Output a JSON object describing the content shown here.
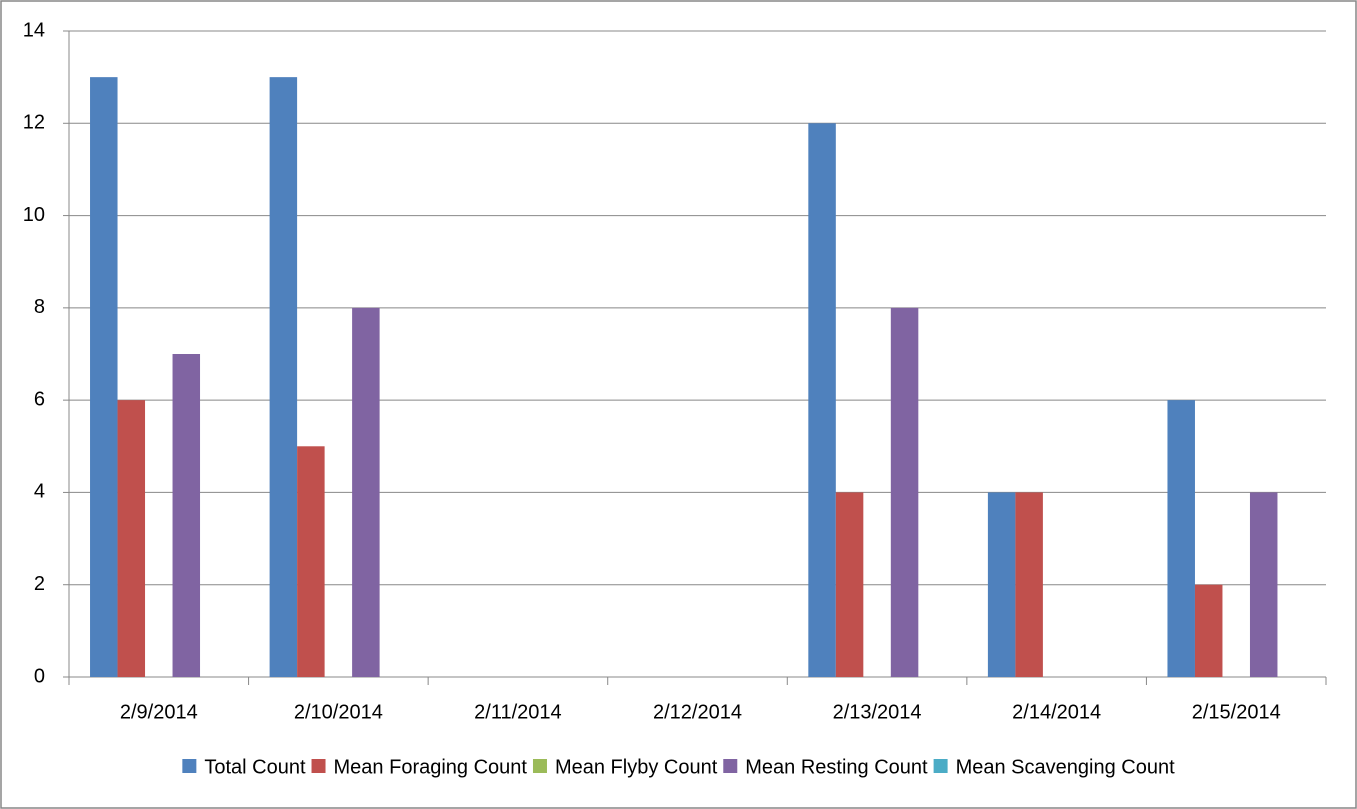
{
  "chart_data": {
    "type": "bar",
    "categories": [
      "2/9/2014",
      "2/10/2014",
      "2/11/2014",
      "2/12/2014",
      "2/13/2014",
      "2/14/2014",
      "2/15/2014"
    ],
    "series": [
      {
        "name": "Total Count",
        "color": "#4f81bd",
        "values": [
          13,
          13,
          0,
          0,
          12,
          4,
          6
        ]
      },
      {
        "name": "Mean Foraging Count",
        "color": "#c0504d",
        "values": [
          6,
          5,
          0,
          0,
          4,
          4,
          2
        ]
      },
      {
        "name": "Mean Flyby Count",
        "color": "#9bbb59",
        "values": [
          0,
          0,
          0,
          0,
          0,
          0,
          0
        ]
      },
      {
        "name": "Mean Resting Count",
        "color": "#8064a2",
        "values": [
          7,
          8,
          0,
          0,
          8,
          0,
          4
        ]
      },
      {
        "name": "Mean Scavenging Count",
        "color": "#4bacc6",
        "values": [
          0,
          0,
          0,
          0,
          0,
          0,
          0
        ]
      }
    ],
    "ylim": [
      0,
      14
    ],
    "yticks": [
      0,
      2,
      4,
      6,
      8,
      10,
      12,
      14
    ],
    "grid": true,
    "legend": "bottom"
  }
}
